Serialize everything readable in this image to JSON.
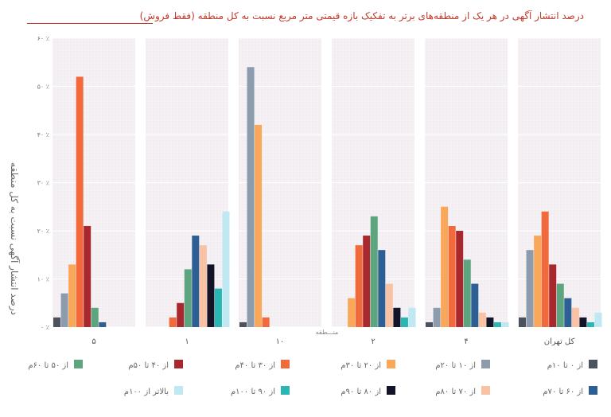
{
  "title": "درصد  انتشار آگهی در هر یک از منطقه‌های برتر به تفکیک بازه قیمتی متر مربع نسبت به کل منطقه (فقط فروش)",
  "colors": {
    "title": "#c0392b",
    "panel_bg": "#f3eef2",
    "axis_text": "#666666"
  },
  "chart_data": {
    "type": "bar",
    "title": "درصد  انتشار آگهی در هر یک از منطقه‌های برتر به تفکیک بازه قیمتی متر مربع نسبت به کل منطقه (فقط فروش)",
    "xlabel": "منـــطقه",
    "ylabel": "درصد انتشار آگهی نسبت به کل منطقه",
    "ylim": [
      0,
      60
    ],
    "yticks": [
      0,
      10,
      20,
      30,
      40,
      50,
      60
    ],
    "ytick_labels": [
      "۰ ٪",
      "۱۰ ٪",
      "۲۰ ٪",
      "۳۰ ٪",
      "۴۰ ٪",
      "۵۰ ٪",
      "۶۰ ٪"
    ],
    "grid": true,
    "legend_position": "bottom",
    "categories": [
      "۵",
      "۱",
      "۱۰",
      "۲",
      "۴",
      "کل تهران"
    ],
    "series": [
      {
        "name": "از ۰ تا ۱۰م",
        "color": "#4d535e",
        "values": [
          2,
          0,
          1,
          0,
          1,
          2
        ]
      },
      {
        "name": "از ۱۰ تا ۲۰م",
        "color": "#8d9cad",
        "values": [
          7,
          0,
          54,
          0,
          4,
          16
        ]
      },
      {
        "name": "از ۲۰ تا ۳۰م",
        "color": "#f9a85a",
        "values": [
          13,
          0,
          42,
          6,
          25,
          19
        ]
      },
      {
        "name": "از ۳۰ تا ۴۰م",
        "color": "#f26a3c",
        "values": [
          52,
          2,
          2,
          17,
          21,
          24
        ]
      },
      {
        "name": "از ۴۰ تا ۵۰م",
        "color": "#a8282d",
        "values": [
          21,
          5,
          0,
          19,
          20,
          13
        ]
      },
      {
        "name": "از ۵۰ تا ۶۰م",
        "color": "#5ca57f",
        "values": [
          4,
          12,
          0,
          23,
          14,
          9
        ]
      },
      {
        "name": "از ۶۰ تا ۷۰م",
        "color": "#2d5f95",
        "values": [
          1,
          19,
          0,
          16,
          9,
          6
        ]
      },
      {
        "name": "از ۷۰ تا ۸۰م",
        "color": "#f9c2a4",
        "values": [
          0,
          17,
          0,
          9,
          3,
          4
        ]
      },
      {
        "name": "از ۸۰ تا ۹۰م",
        "color": "#141428",
        "values": [
          0,
          13,
          0,
          4,
          2,
          2
        ]
      },
      {
        "name": "از ۹۰ تا ۱۰۰م",
        "color": "#2ab7b4",
        "values": [
          0,
          8,
          0,
          2,
          1,
          1
        ]
      },
      {
        "name": "بالاتر از ۱۰۰م",
        "color": "#bfe8f3",
        "values": [
          0,
          24,
          0,
          4,
          1,
          3
        ]
      }
    ]
  }
}
